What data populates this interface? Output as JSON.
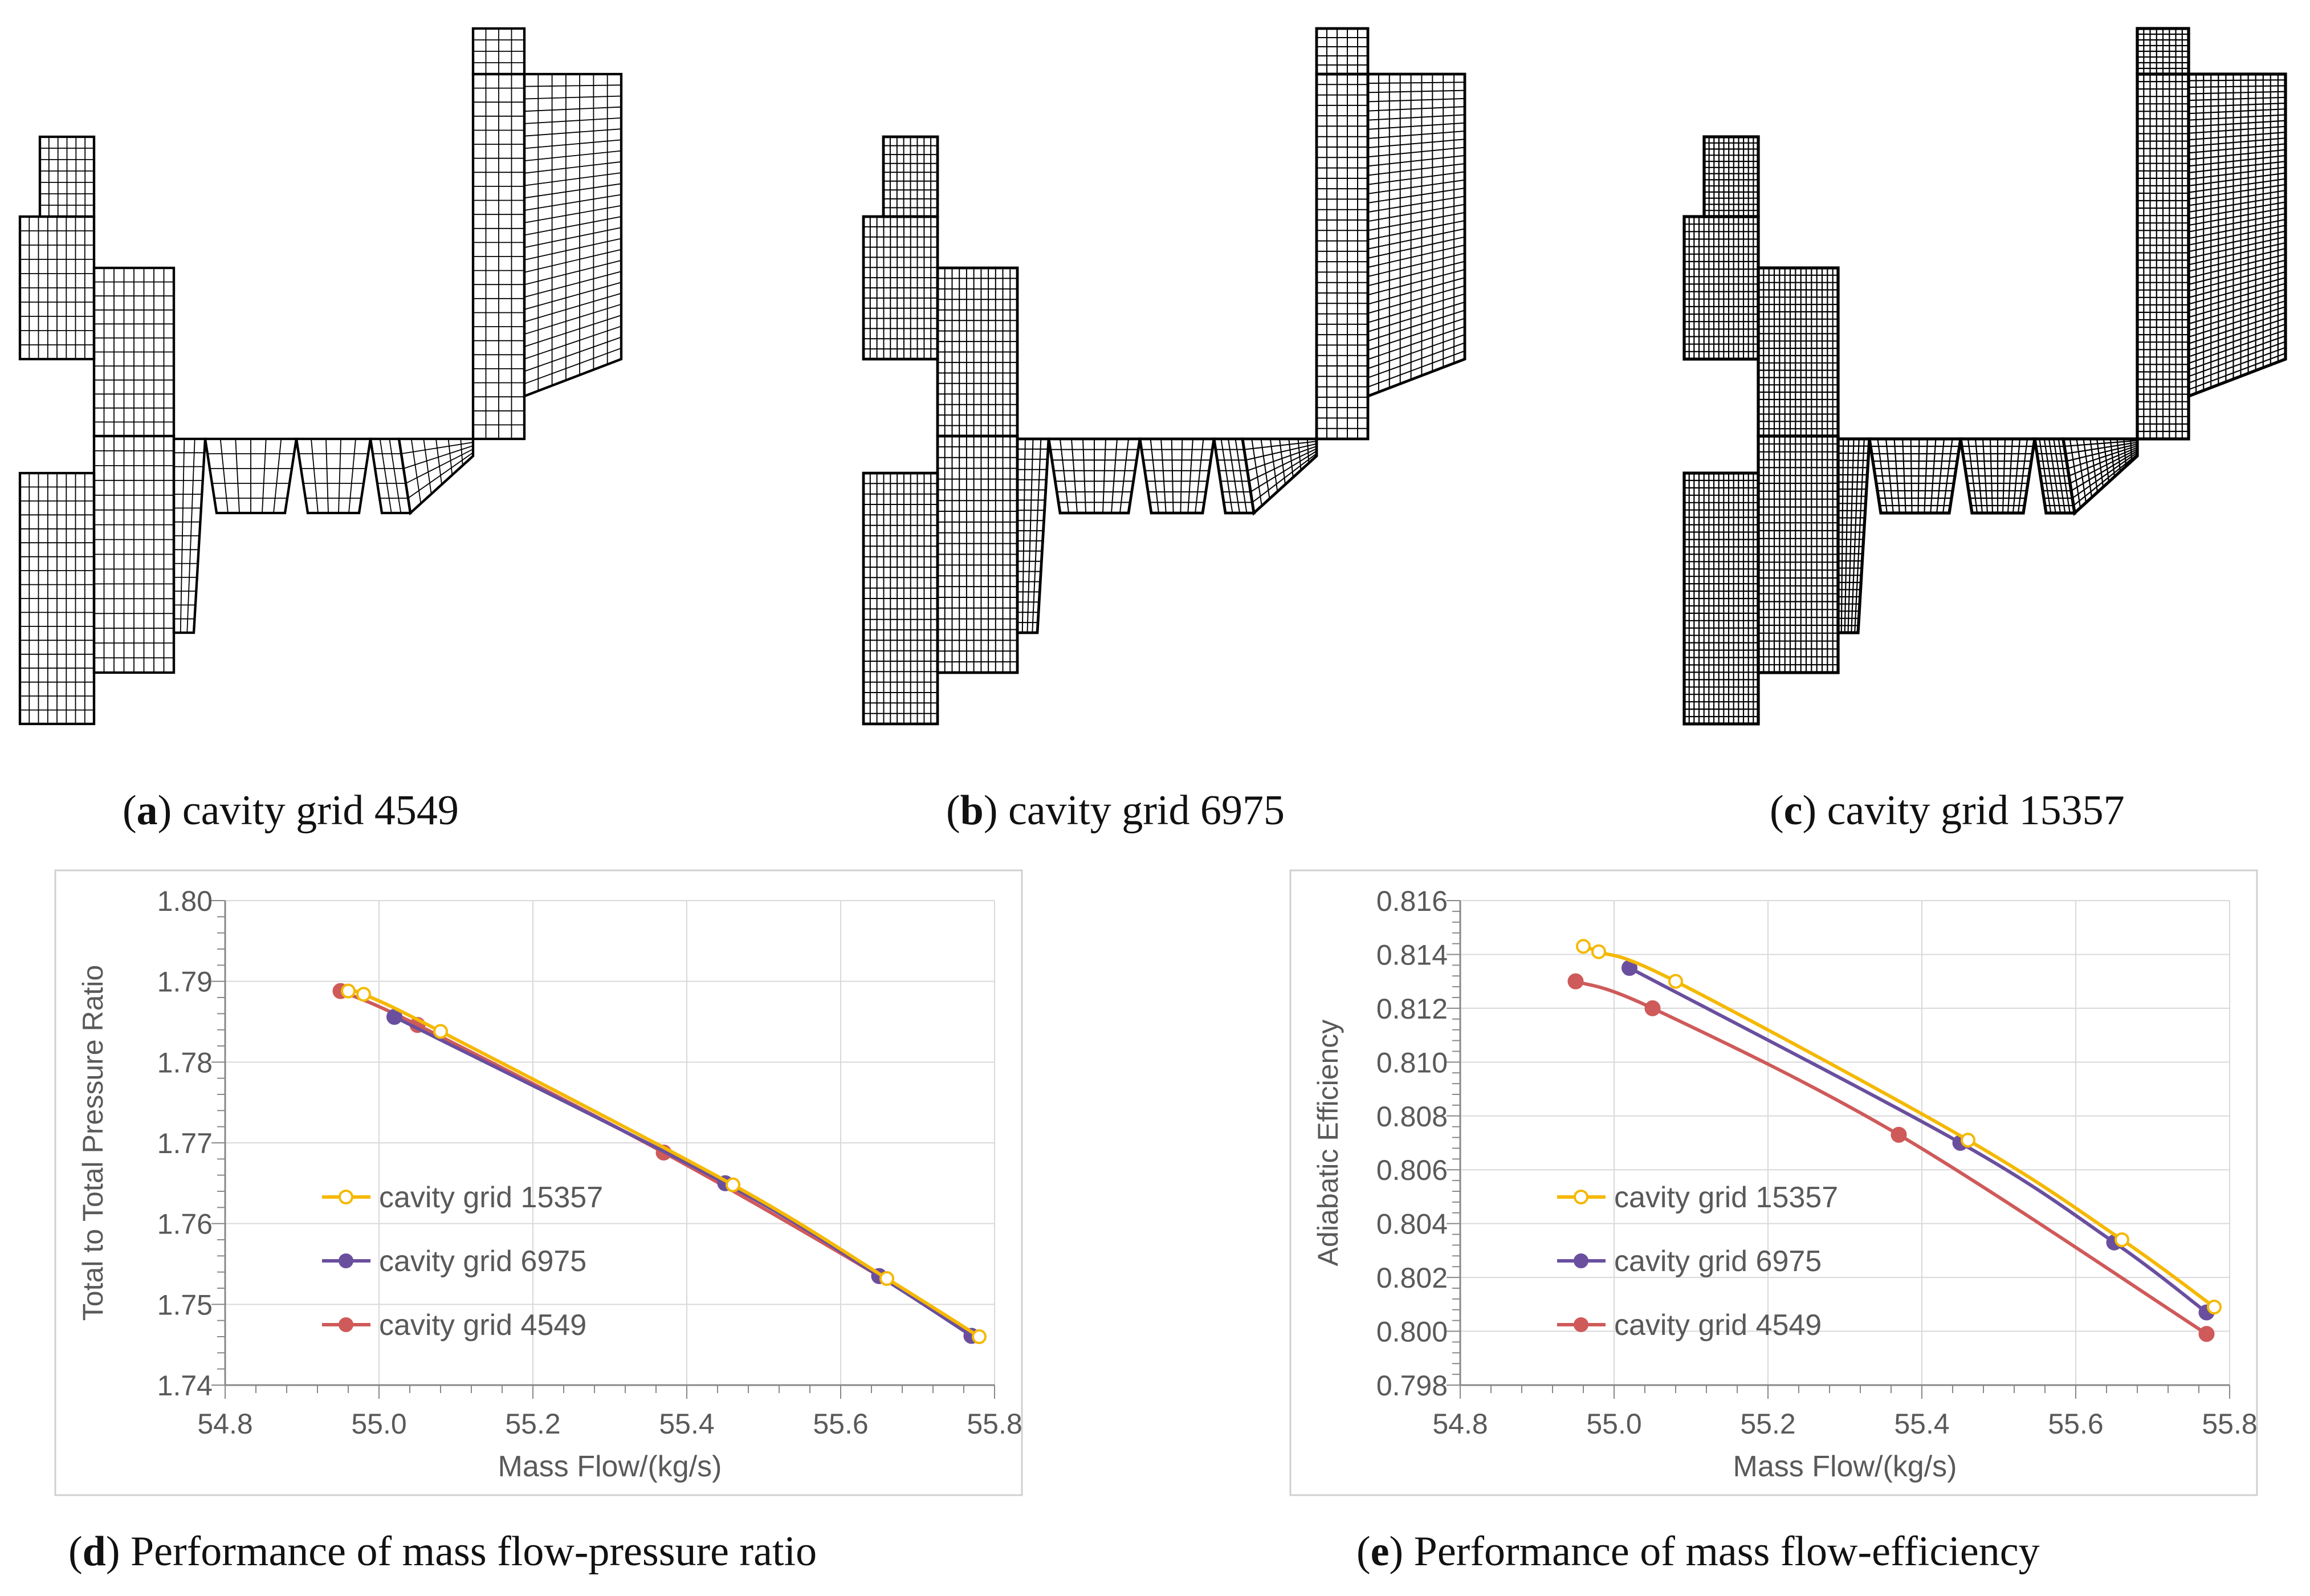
{
  "captions": {
    "a": {
      "letter": "a",
      "text": "cavity grid 4549"
    },
    "b": {
      "letter": "b",
      "text": "cavity grid 6975"
    },
    "c": {
      "letter": "c",
      "text": "cavity grid 15357"
    },
    "d": {
      "letter": "d",
      "text": "Performance of mass flow-pressure ratio"
    },
    "e": {
      "letter": "e",
      "text": "Performance of mass flow-efficiency"
    }
  },
  "grids": [
    {
      "id": "a",
      "cells": 4549
    },
    {
      "id": "b",
      "cells": 6975
    },
    {
      "id": "c",
      "cells": 15357
    }
  ],
  "colors": {
    "yellow": "#f5b800",
    "purple": "#6a4f9e",
    "red": "#cf5a5a",
    "axis": "#888888",
    "grid": "#d9d9d9",
    "text": "#595959"
  },
  "chart_data": [
    {
      "id": "d",
      "type": "line",
      "xlabel": "Mass Flow/(kg/s)",
      "ylabel": "Total to Total Pressure Ratio",
      "xlim": [
        54.8,
        55.8
      ],
      "ylim": [
        1.74,
        1.8
      ],
      "xticks": [
        "54.8",
        "55.0",
        "55.2",
        "55.4",
        "55.6",
        "55.8"
      ],
      "yticks": [
        "1.74",
        "1.75",
        "1.76",
        "1.77",
        "1.78",
        "1.79",
        "1.80"
      ],
      "grid": true,
      "legend_position": "lower-left",
      "series": [
        {
          "name": "cavity grid 15357",
          "color": "#f5b800",
          "marker": "open-circle",
          "x": [
            54.96,
            54.98,
            55.08,
            55.46,
            55.66,
            55.78
          ],
          "y": [
            1.7888,
            1.7884,
            1.7838,
            1.7648,
            1.7532,
            1.746
          ]
        },
        {
          "name": "cavity grid 6975",
          "color": "#6a4f9e",
          "marker": "filled-circle",
          "x": [
            55.02,
            55.45,
            55.65,
            55.77
          ],
          "y": [
            1.7856,
            1.765,
            1.7535,
            1.7461
          ]
        },
        {
          "name": "cavity grid 4549",
          "color": "#cf5a5a",
          "marker": "filled-circle",
          "x": [
            54.95,
            55.05,
            55.37,
            55.65,
            55.77
          ],
          "y": [
            1.7888,
            1.7846,
            1.7688,
            1.7535,
            1.7461
          ]
        }
      ]
    },
    {
      "id": "e",
      "type": "line",
      "xlabel": "Mass Flow/(kg/s)",
      "ylabel": "Adiabatic Efficiency",
      "xlim": [
        54.8,
        55.8
      ],
      "ylim": [
        0.798,
        0.816
      ],
      "xticks": [
        "54.8",
        "55.0",
        "55.2",
        "55.4",
        "55.6",
        "55.8"
      ],
      "yticks": [
        "0.798",
        "0.800",
        "0.802",
        "0.804",
        "0.806",
        "0.808",
        "0.810",
        "0.812",
        "0.814",
        "0.816"
      ],
      "grid": true,
      "legend_position": "lower-left",
      "series": [
        {
          "name": "cavity grid 15357",
          "color": "#f5b800",
          "marker": "open-circle",
          "x": [
            54.96,
            54.98,
            55.08,
            55.46,
            55.66,
            55.78
          ],
          "y": [
            0.8143,
            0.8141,
            0.813,
            0.8071,
            0.8034,
            0.8009
          ]
        },
        {
          "name": "cavity grid 6975",
          "color": "#6a4f9e",
          "marker": "filled-circle",
          "x": [
            55.02,
            55.45,
            55.65,
            55.77
          ],
          "y": [
            0.8135,
            0.807,
            0.8033,
            0.8007
          ]
        },
        {
          "name": "cavity grid 4549",
          "color": "#cf5a5a",
          "marker": "filled-circle",
          "x": [
            54.95,
            55.05,
            55.37,
            55.77
          ],
          "y": [
            0.813,
            0.812,
            0.8073,
            0.7999
          ]
        }
      ]
    }
  ]
}
